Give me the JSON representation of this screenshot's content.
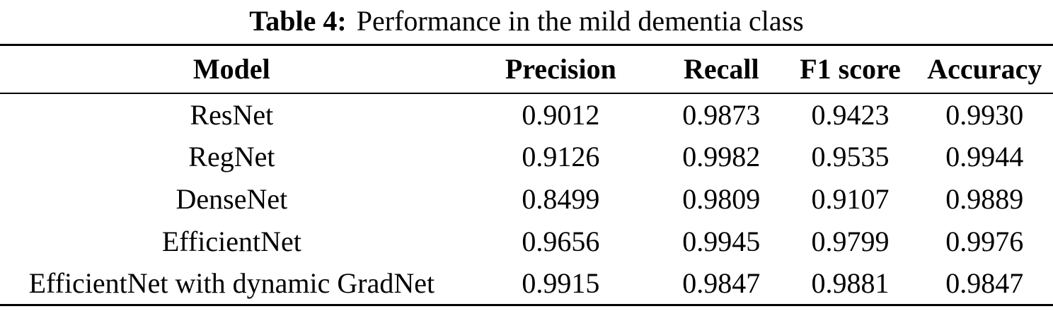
{
  "caption": {
    "label": "Table 4:",
    "text": "Performance in the mild dementia class"
  },
  "chart_data": {
    "type": "table",
    "columns": [
      "Model",
      "Precision",
      "Recall",
      "F1 score",
      "Accuracy"
    ],
    "rows": [
      [
        "ResNet",
        "0.9012",
        "0.9873",
        "0.9423",
        "0.9930"
      ],
      [
        "RegNet",
        "0.9126",
        "0.9982",
        "0.9535",
        "0.9944"
      ],
      [
        "DenseNet",
        "0.8499",
        "0.9809",
        "0.9107",
        "0.9889"
      ],
      [
        "EfficientNet",
        "0.9656",
        "0.9945",
        "0.9799",
        "0.9976"
      ],
      [
        "EfficientNet with dynamic GradNet",
        "0.9915",
        "0.9847",
        "0.9881",
        "0.9847"
      ]
    ]
  },
  "colors": {
    "text": "#000000",
    "background": "#ffffff",
    "rule": "#000000"
  }
}
